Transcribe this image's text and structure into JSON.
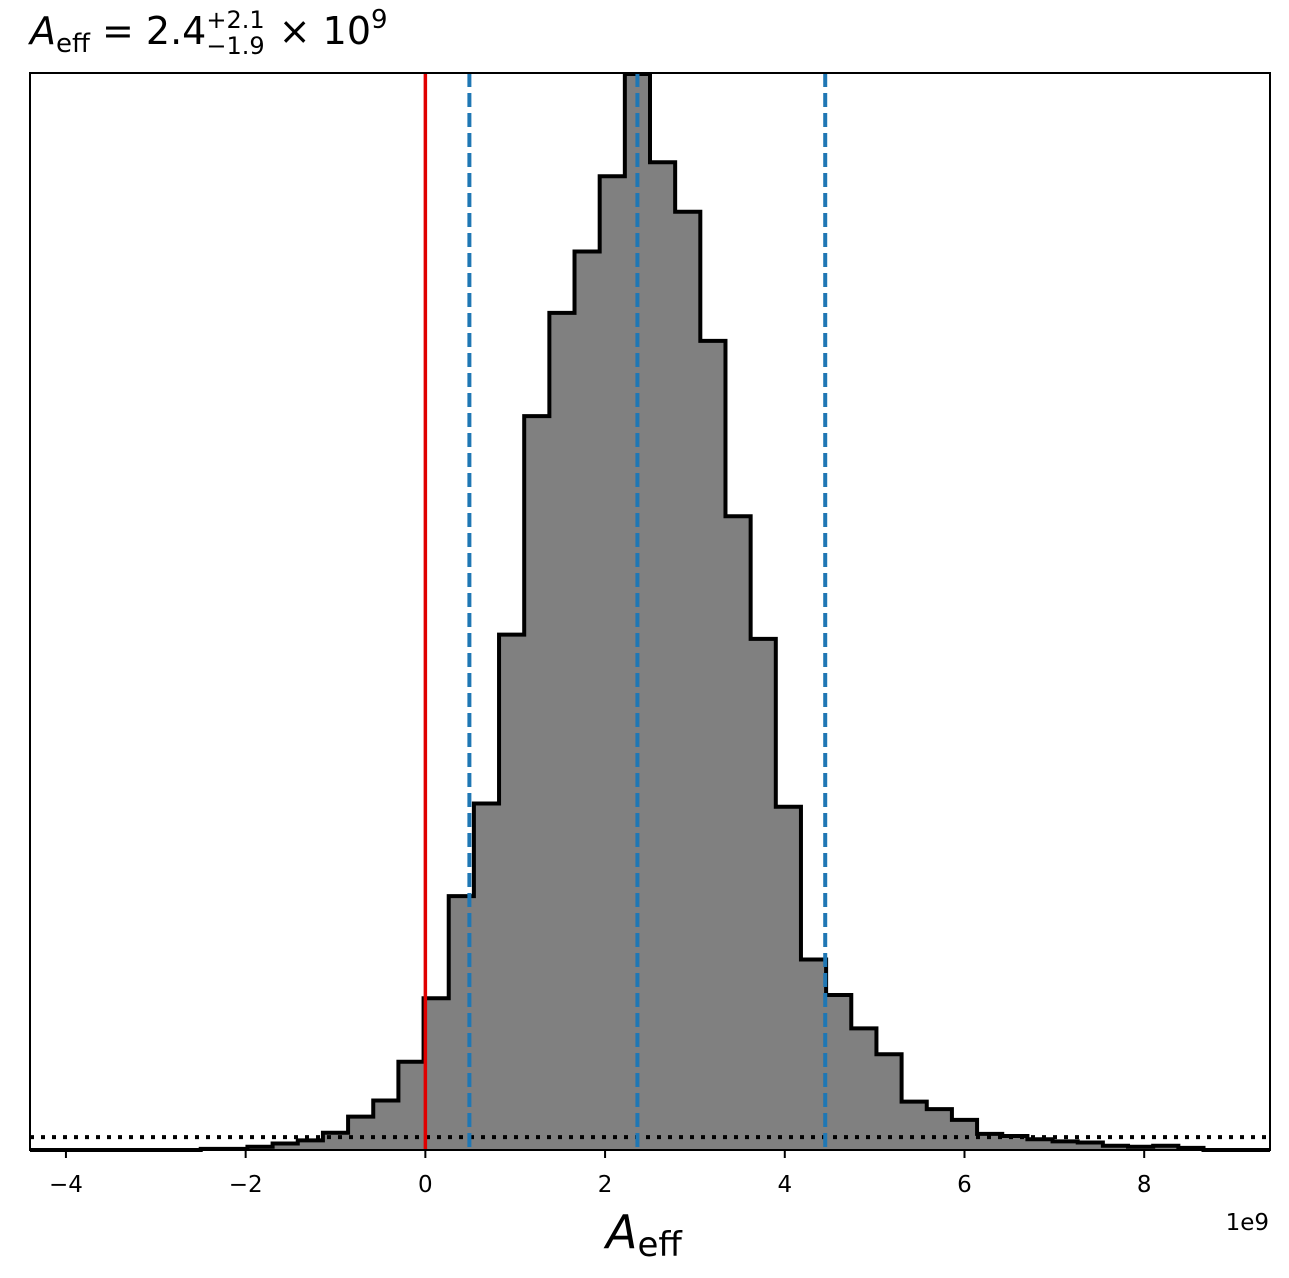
{
  "chart_data": {
    "type": "histogram",
    "title": {
      "symbol": "A",
      "subscript": "eff",
      "equals": " = 2.4",
      "upper": "+2.1",
      "lower": "−1.9",
      "times": " × 10",
      "exponent": "9"
    },
    "xlabel": {
      "symbol": "A",
      "subscript": "eff"
    },
    "ylabel": "",
    "offset_label": "1e9",
    "xlim": [
      -4.4,
      9.4
    ],
    "ylim": [
      0,
      1.0
    ],
    "xticks": [
      -4,
      -2,
      0,
      2,
      4,
      6,
      8
    ],
    "xtick_labels": [
      "−4",
      "−2",
      "0",
      "2",
      "4",
      "6",
      "8"
    ],
    "yticks_visible": false,
    "grid": false,
    "bin_width": 0.28,
    "bins": [
      {
        "x0": -4.4,
        "x1": -2.5,
        "density": 0.0
      },
      {
        "x0": -2.5,
        "x1": -1.98,
        "density": 0.001
      },
      {
        "x0": -1.98,
        "x1": -1.7,
        "density": 0.003
      },
      {
        "x0": -1.7,
        "x1": -1.42,
        "density": 0.006
      },
      {
        "x0": -1.42,
        "x1": -1.14,
        "density": 0.009
      },
      {
        "x0": -1.14,
        "x1": -0.86,
        "density": 0.016
      },
      {
        "x0": -0.86,
        "x1": -0.58,
        "density": 0.031
      },
      {
        "x0": -0.58,
        "x1": -0.3,
        "density": 0.046
      },
      {
        "x0": -0.3,
        "x1": -0.02,
        "density": 0.082
      },
      {
        "x0": -0.02,
        "x1": 0.26,
        "density": 0.141
      },
      {
        "x0": 0.26,
        "x1": 0.54,
        "density": 0.236
      },
      {
        "x0": 0.54,
        "x1": 0.82,
        "density": 0.322
      },
      {
        "x0": 0.82,
        "x1": 1.1,
        "density": 0.479
      },
      {
        "x0": 1.1,
        "x1": 1.38,
        "density": 0.682
      },
      {
        "x0": 1.38,
        "x1": 1.66,
        "density": 0.778
      },
      {
        "x0": 1.66,
        "x1": 1.94,
        "density": 0.835
      },
      {
        "x0": 1.94,
        "x1": 2.22,
        "density": 0.905
      },
      {
        "x0": 2.22,
        "x1": 2.5,
        "density": 1.0
      },
      {
        "x0": 2.5,
        "x1": 2.78,
        "density": 0.918
      },
      {
        "x0": 2.78,
        "x1": 3.06,
        "density": 0.872
      },
      {
        "x0": 3.06,
        "x1": 3.34,
        "density": 0.752
      },
      {
        "x0": 3.34,
        "x1": 3.62,
        "density": 0.589
      },
      {
        "x0": 3.62,
        "x1": 3.9,
        "density": 0.475
      },
      {
        "x0": 3.9,
        "x1": 4.18,
        "density": 0.319
      },
      {
        "x0": 4.18,
        "x1": 4.46,
        "density": 0.177
      },
      {
        "x0": 4.46,
        "x1": 4.74,
        "density": 0.144
      },
      {
        "x0": 4.74,
        "x1": 5.02,
        "density": 0.113
      },
      {
        "x0": 5.02,
        "x1": 5.3,
        "density": 0.089
      },
      {
        "x0": 5.3,
        "x1": 5.58,
        "density": 0.045
      },
      {
        "x0": 5.58,
        "x1": 5.86,
        "density": 0.038
      },
      {
        "x0": 5.86,
        "x1": 6.14,
        "density": 0.028
      },
      {
        "x0": 6.14,
        "x1": 6.42,
        "density": 0.015
      },
      {
        "x0": 6.42,
        "x1": 6.7,
        "density": 0.013
      },
      {
        "x0": 6.7,
        "x1": 6.98,
        "density": 0.01
      },
      {
        "x0": 6.98,
        "x1": 7.26,
        "density": 0.008
      },
      {
        "x0": 7.26,
        "x1": 7.54,
        "density": 0.007
      },
      {
        "x0": 7.54,
        "x1": 7.82,
        "density": 0.004
      },
      {
        "x0": 7.82,
        "x1": 8.1,
        "density": 0.003
      },
      {
        "x0": 8.1,
        "x1": 8.38,
        "density": 0.004
      },
      {
        "x0": 8.38,
        "x1": 8.66,
        "density": 0.002
      },
      {
        "x0": 8.66,
        "x1": 9.4,
        "density": 0.0
      }
    ],
    "reference_lines": [
      {
        "name": "zero",
        "x": 0.0,
        "style": "solid",
        "color": "#e00000"
      },
      {
        "name": "lower-quantile",
        "x": 0.49,
        "style": "dashed",
        "color": "#1f77b4"
      },
      {
        "name": "median",
        "x": 2.36,
        "style": "dashed",
        "color": "#1f77b4"
      },
      {
        "name": "upper-quantile",
        "x": 4.45,
        "style": "dashed",
        "color": "#1f77b4"
      }
    ],
    "prior_line": {
      "density": 0.012,
      "style": "dotted",
      "color": "#000000"
    },
    "colors": {
      "hist_fill": "#808080",
      "hist_edge": "#000000",
      "zero_line": "#e00000",
      "quantile_line": "#1f77b4"
    }
  }
}
